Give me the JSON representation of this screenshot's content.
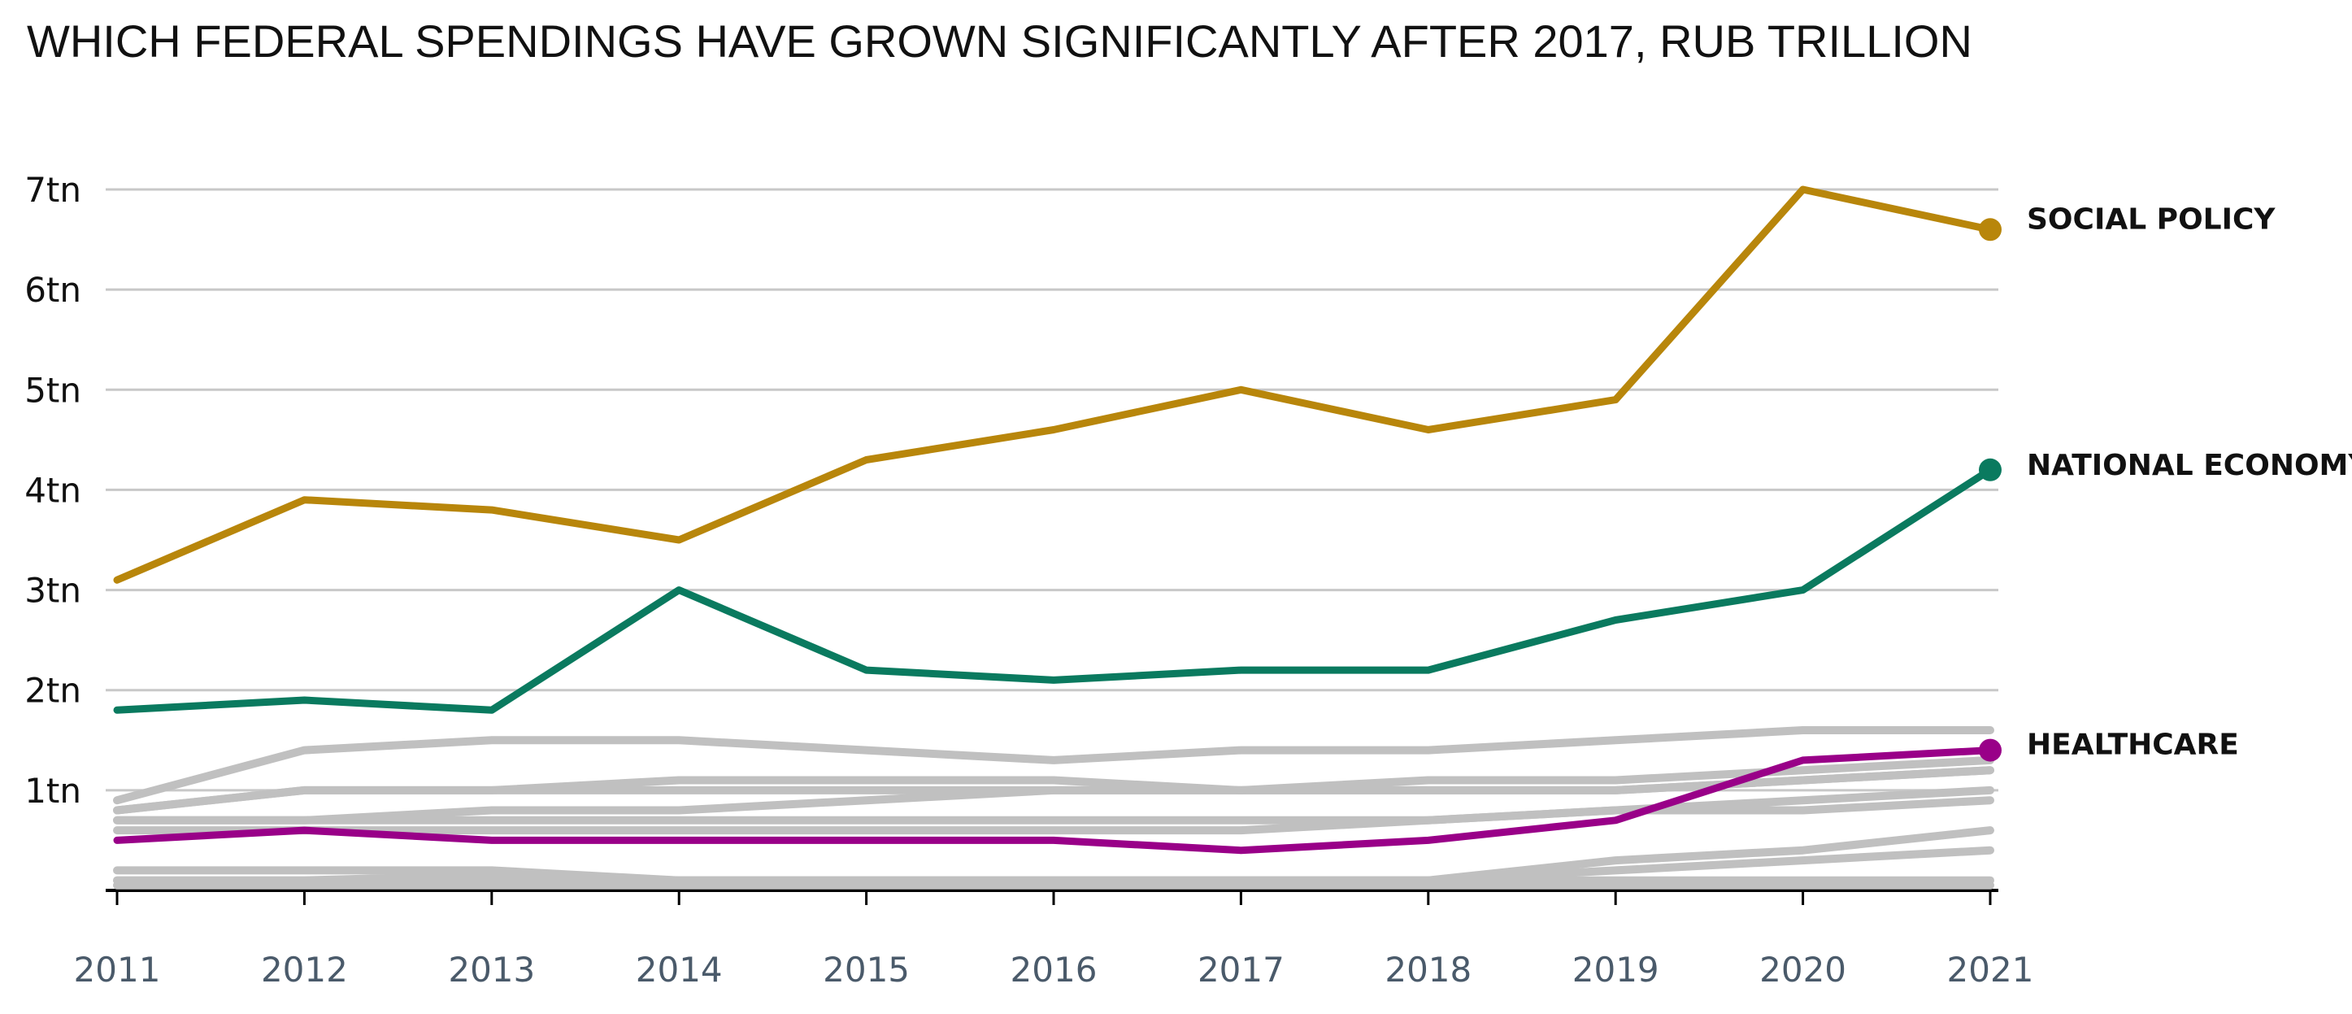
{
  "chart_data": {
    "type": "line",
    "title": "WHICH FEDERAL SPENDINGS HAVE GROWN SIGNIFICANTLY AFTER 2017, RUB TRILLION",
    "xlabel": "",
    "ylabel": "",
    "x": [
      2011,
      2012,
      2013,
      2014,
      2015,
      2016,
      2017,
      2018,
      2019,
      2020,
      2021
    ],
    "y_ticks": [
      1,
      2,
      3,
      4,
      5,
      6,
      7
    ],
    "y_tick_labels": [
      "1tn",
      "2tn",
      "3tn",
      "4tn",
      "5tn",
      "6tn",
      "7tn"
    ],
    "ylim": [
      0,
      7
    ],
    "grid": true,
    "highlighted_series": [
      {
        "name": "SOCIAL POLICY",
        "color": "#B8860B",
        "values": [
          3.1,
          3.9,
          3.8,
          3.5,
          4.3,
          4.6,
          5.0,
          4.6,
          4.9,
          7.0,
          6.6
        ]
      },
      {
        "name": "NATIONAL ECONOMY",
        "color": "#0A7A5F",
        "values": [
          1.8,
          1.9,
          1.8,
          3.0,
          2.2,
          2.1,
          2.2,
          2.2,
          2.7,
          3.0,
          4.2
        ]
      },
      {
        "name": "HEALTHCARE",
        "color": "#990088",
        "values": [
          0.5,
          0.6,
          0.5,
          0.5,
          0.5,
          0.5,
          0.4,
          0.5,
          0.7,
          1.3,
          1.4
        ]
      }
    ],
    "background_series": {
      "color": "#C0C0C0",
      "series": [
        {
          "values": [
            0.9,
            1.4,
            1.5,
            1.5,
            1.4,
            1.3,
            1.4,
            1.4,
            1.5,
            1.6,
            1.6
          ]
        },
        {
          "values": [
            0.8,
            1.0,
            1.0,
            1.1,
            1.1,
            1.1,
            1.0,
            1.1,
            1.1,
            1.2,
            1.3
          ]
        },
        {
          "values": [
            0.8,
            1.0,
            1.0,
            1.0,
            1.0,
            1.0,
            1.0,
            1.0,
            1.0,
            1.1,
            1.2
          ]
        },
        {
          "values": [
            0.7,
            0.7,
            0.8,
            0.8,
            0.9,
            1.0,
            1.0,
            1.0,
            1.0,
            1.1,
            1.2
          ]
        },
        {
          "values": [
            0.7,
            0.7,
            0.7,
            0.7,
            0.7,
            0.7,
            0.7,
            0.7,
            0.8,
            0.9,
            1.0
          ]
        },
        {
          "values": [
            0.6,
            0.6,
            0.6,
            0.6,
            0.6,
            0.6,
            0.6,
            0.7,
            0.8,
            0.8,
            0.9
          ]
        },
        {
          "values": [
            0.2,
            0.2,
            0.2,
            0.1,
            0.1,
            0.1,
            0.1,
            0.1,
            0.3,
            0.4,
            0.6
          ]
        },
        {
          "values": [
            0.1,
            0.1,
            0.1,
            0.1,
            0.1,
            0.1,
            0.1,
            0.1,
            0.2,
            0.3,
            0.4
          ]
        },
        {
          "values": [
            0.1,
            0.1,
            0.15,
            0.1,
            0.1,
            0.1,
            0.1,
            0.1,
            0.1,
            0.1,
            0.1
          ]
        },
        {
          "values": [
            0.05,
            0.05,
            0.05,
            0.05,
            0.05,
            0.05,
            0.05,
            0.05,
            0.05,
            0.05,
            0.05
          ]
        }
      ]
    },
    "gridline_color": "#C8C8C8",
    "axis_color": "#000000",
    "x_tick_label_color": "#4A5A6A",
    "y_tick_label_color": "#111111",
    "series_label_color": "#111111"
  }
}
